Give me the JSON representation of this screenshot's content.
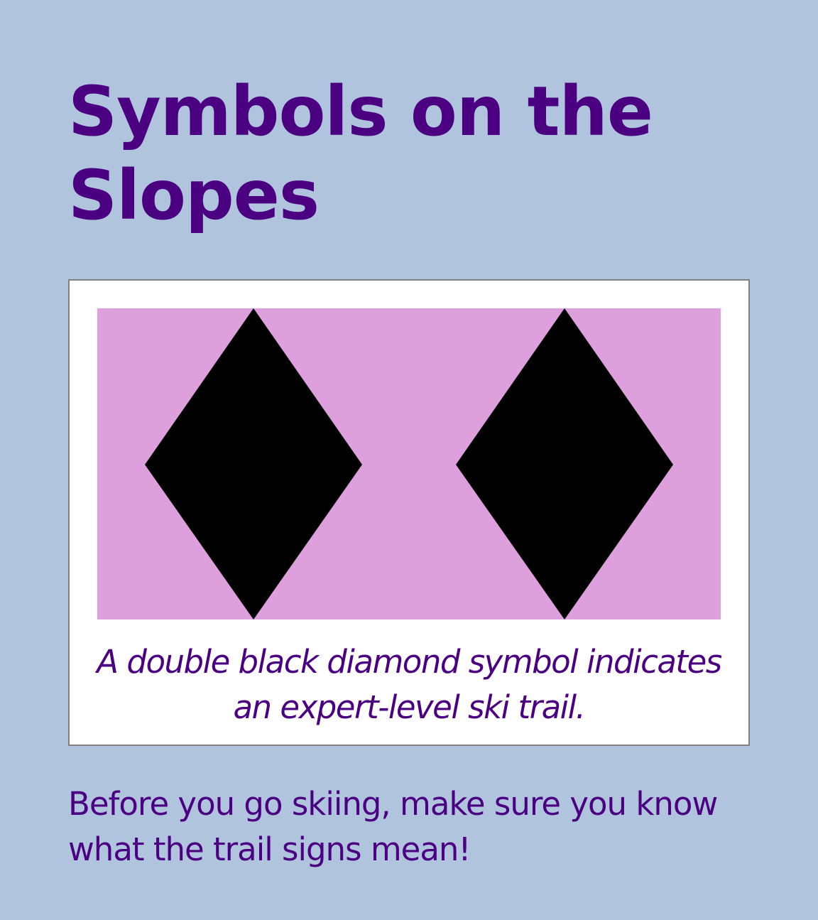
{
  "page": {
    "title_line1": "Symbols on the",
    "title_line2": "Slopes",
    "background_color": "#b0c4de",
    "text_color": "#4b0082"
  },
  "figure": {
    "panel_color": "#dda0dd",
    "symbol_color": "#000000",
    "icons": [
      "black-diamond-icon",
      "black-diamond-icon"
    ],
    "caption": "A double black diamond symbol indicates an expert-level ski trail."
  },
  "body": {
    "intro": "Before you go skiing, make sure you know what the trail signs mean!"
  }
}
